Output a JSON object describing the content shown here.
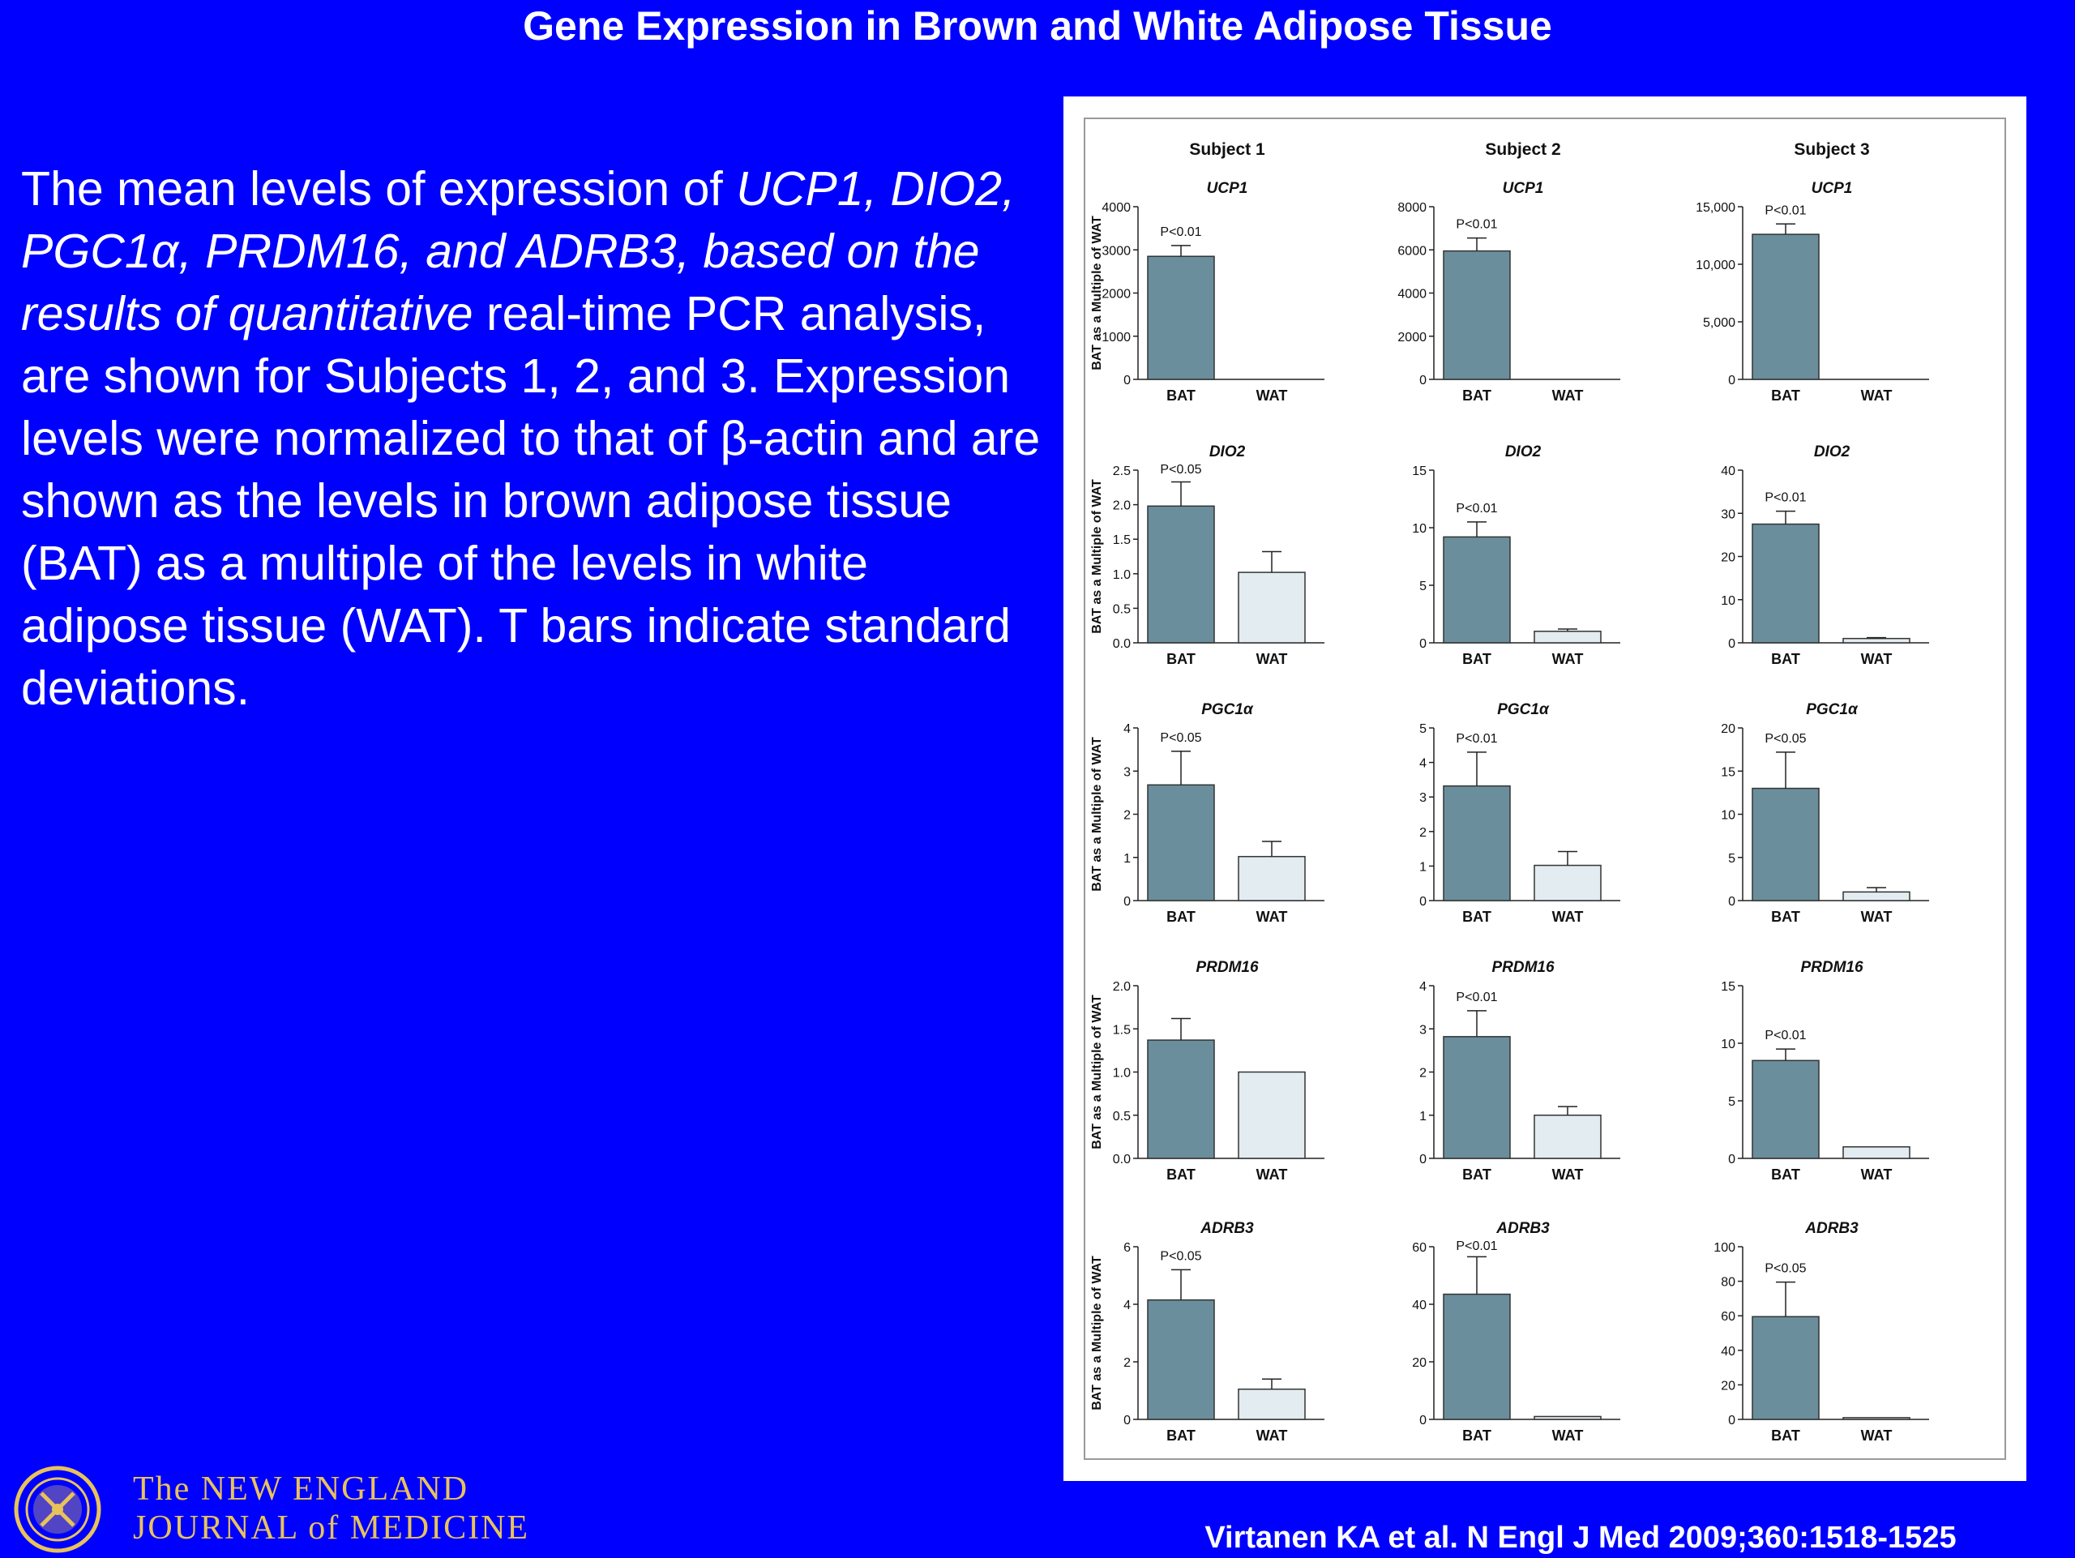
{
  "slide": {
    "title": "Gene Expression in Brown and White Adipose Tissue",
    "caption": {
      "part1": "The mean levels of expression of ",
      "italic": "UCP1, DIO2, PGC1α, PRDM16, and ADRB3, based on the results of quantitative",
      "part2": " real-time PCR analysis, are shown for Subjects 1, 2, and 3. Expression levels were normalized to that of β-actin and are shown as the levels in brown adipose tissue (BAT) as a multiple of the levels in white adipose tissue (WAT). T bars indicate standard deviations."
    },
    "citation": "Virtanen KA et al. N Engl J Med 2009;360:1518-1525",
    "journal": {
      "line1": "The NEW ENGLAND",
      "line2": "JOURNAL of MEDICINE",
      "logo_icon": "nejm-seal-icon"
    }
  },
  "figure": {
    "subjects": [
      "Subject 1",
      "Subject 2",
      "Subject 3"
    ],
    "ylabel": "BAT as a Multiple of WAT",
    "categories": [
      "BAT",
      "WAT"
    ],
    "colors": {
      "bat": "#6a8e9c",
      "wat": "#e3ecf0",
      "background": "#0000ff",
      "panel": "#ffffff"
    }
  },
  "chart_data": [
    {
      "type": "bar",
      "subject": "Subject 1",
      "gene": "UCP1",
      "categories": [
        "BAT",
        "WAT"
      ],
      "values": [
        2850,
        0
      ],
      "errors": [
        250,
        0
      ],
      "ylim": [
        0,
        4000
      ],
      "yticks": [
        "0",
        "1000",
        "2000",
        "3000",
        "4000"
      ],
      "pvalue": "P<0.01"
    },
    {
      "type": "bar",
      "subject": "Subject 2",
      "gene": "UCP1",
      "categories": [
        "BAT",
        "WAT"
      ],
      "values": [
        5950,
        0
      ],
      "errors": [
        600,
        0
      ],
      "ylim": [
        0,
        8000
      ],
      "yticks": [
        "0",
        "2000",
        "4000",
        "6000",
        "8000"
      ],
      "pvalue": "P<0.01"
    },
    {
      "type": "bar",
      "subject": "Subject 3",
      "gene": "UCP1",
      "categories": [
        "BAT",
        "WAT"
      ],
      "values": [
        12600,
        0
      ],
      "errors": [
        900,
        0
      ],
      "ylim": [
        0,
        15000
      ],
      "yticks": [
        "0",
        "5,000",
        "10,000",
        "15,000"
      ],
      "yticklabels_at": [
        0,
        5000,
        10000,
        15000
      ],
      "pvalue": "P<0.01"
    },
    {
      "type": "bar",
      "subject": "Subject 1",
      "gene": "DIO2",
      "categories": [
        "BAT",
        "WAT"
      ],
      "values": [
        1.98,
        1.02
      ],
      "errors": [
        0.35,
        0.3
      ],
      "ylim": [
        0,
        2.5
      ],
      "yticks": [
        "0.0",
        "0.5",
        "1.0",
        "1.5",
        "2.0",
        "2.5"
      ],
      "pvalue": "P<0.05"
    },
    {
      "type": "bar",
      "subject": "Subject 2",
      "gene": "DIO2",
      "categories": [
        "BAT",
        "WAT"
      ],
      "values": [
        9.2,
        1.0
      ],
      "errors": [
        1.3,
        0.2
      ],
      "ylim": [
        0,
        15
      ],
      "yticks": [
        "0",
        "5",
        "10",
        "15"
      ],
      "pvalue": "P<0.01"
    },
    {
      "type": "bar",
      "subject": "Subject 3",
      "gene": "DIO2",
      "categories": [
        "BAT",
        "WAT"
      ],
      "values": [
        27.5,
        1.0
      ],
      "errors": [
        3.0,
        0.2
      ],
      "ylim": [
        0,
        40
      ],
      "yticks": [
        "0",
        "10",
        "20",
        "30",
        "40"
      ],
      "pvalue": "P<0.01"
    },
    {
      "type": "bar",
      "subject": "Subject 1",
      "gene": "PGC1α",
      "categories": [
        "BAT",
        "WAT"
      ],
      "values": [
        2.68,
        1.02
      ],
      "errors": [
        0.78,
        0.35
      ],
      "ylim": [
        0,
        4
      ],
      "yticks": [
        "0",
        "1",
        "2",
        "3",
        "4"
      ],
      "pvalue": "P<0.05"
    },
    {
      "type": "bar",
      "subject": "Subject 2",
      "gene": "PGC1α",
      "categories": [
        "BAT",
        "WAT"
      ],
      "values": [
        3.32,
        1.02
      ],
      "errors": [
        0.98,
        0.4
      ],
      "ylim": [
        0,
        5
      ],
      "yticks": [
        "0",
        "1",
        "2",
        "3",
        "4",
        "5"
      ],
      "pvalue": "P<0.01"
    },
    {
      "type": "bar",
      "subject": "Subject 3",
      "gene": "PGC1α",
      "categories": [
        "BAT",
        "WAT"
      ],
      "values": [
        13.0,
        1.0
      ],
      "errors": [
        4.2,
        0.5
      ],
      "ylim": [
        0,
        20
      ],
      "yticks": [
        "0",
        "5",
        "10",
        "15",
        "20"
      ],
      "pvalue": "P<0.05"
    },
    {
      "type": "bar",
      "subject": "Subject 1",
      "gene": "PRDM16",
      "categories": [
        "BAT",
        "WAT"
      ],
      "values": [
        1.37,
        1.0
      ],
      "errors": [
        0.25,
        0
      ],
      "ylim": [
        0,
        2.0
      ],
      "yticks": [
        "0.0",
        "0.5",
        "1.0",
        "1.5",
        "2.0"
      ],
      "pvalue": ""
    },
    {
      "type": "bar",
      "subject": "Subject 2",
      "gene": "PRDM16",
      "categories": [
        "BAT",
        "WAT"
      ],
      "values": [
        2.82,
        1.0
      ],
      "errors": [
        0.6,
        0.2
      ],
      "ylim": [
        0,
        4
      ],
      "yticks": [
        "0",
        "1",
        "2",
        "3",
        "4"
      ],
      "pvalue": "P<0.01"
    },
    {
      "type": "bar",
      "subject": "Subject 3",
      "gene": "PRDM16",
      "categories": [
        "BAT",
        "WAT"
      ],
      "values": [
        8.5,
        1.0
      ],
      "errors": [
        1.0,
        0
      ],
      "ylim": [
        0,
        15
      ],
      "yticks": [
        "0",
        "5",
        "10",
        "15"
      ],
      "pvalue": "P<0.01"
    },
    {
      "type": "bar",
      "subject": "Subject 1",
      "gene": "ADRB3",
      "categories": [
        "BAT",
        "WAT"
      ],
      "values": [
        4.15,
        1.05
      ],
      "errors": [
        1.05,
        0.35
      ],
      "ylim": [
        0,
        6
      ],
      "yticks": [
        "0",
        "2",
        "4",
        "6"
      ],
      "pvalue": "P<0.05"
    },
    {
      "type": "bar",
      "subject": "Subject 2",
      "gene": "ADRB3",
      "categories": [
        "BAT",
        "WAT"
      ],
      "values": [
        43.5,
        1.0
      ],
      "errors": [
        13.0,
        0
      ],
      "ylim": [
        0,
        60
      ],
      "yticks": [
        "0",
        "20",
        "40",
        "60"
      ],
      "pvalue": "P<0.01"
    },
    {
      "type": "bar",
      "subject": "Subject 3",
      "gene": "ADRB3",
      "categories": [
        "BAT",
        "WAT"
      ],
      "values": [
        59.5,
        1.0
      ],
      "errors": [
        20.0,
        0
      ],
      "ylim": [
        0,
        100
      ],
      "yticks": [
        "0",
        "20",
        "40",
        "60",
        "80",
        "100"
      ],
      "pvalue": "P<0.05"
    }
  ]
}
